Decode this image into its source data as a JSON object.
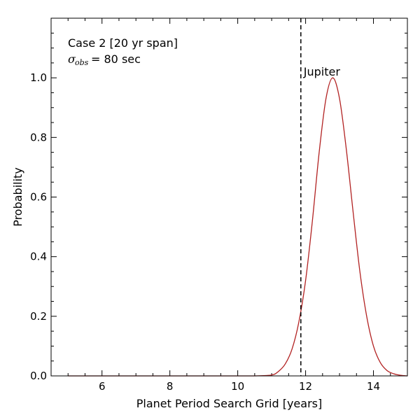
{
  "chart_data": {
    "type": "line",
    "xlabel": "Planet Period Search Grid [years]",
    "ylabel": "Probability",
    "xlim": [
      4.5,
      15
    ],
    "ylim": [
      0,
      1.2
    ],
    "x_ticks": [
      6,
      8,
      10,
      12,
      14
    ],
    "y_ticks": [
      0.0,
      0.2,
      0.4,
      0.6,
      0.8,
      1.0
    ],
    "x_tick_labels": [
      "6",
      "8",
      "10",
      "12",
      "14"
    ],
    "y_tick_labels": [
      "0.0",
      "0.2",
      "0.4",
      "0.6",
      "0.8",
      "1.0"
    ],
    "grid": false,
    "annotation_case": "Case 2 [20 yr span]",
    "annotation_sigma_symbol": "σ",
    "annotation_sigma_sub": "obs",
    "annotation_sigma_value": "= 80 sec",
    "reference_line": {
      "x": 11.86,
      "label": "Jupiter"
    },
    "curve_color": "#b22222",
    "series": [
      {
        "x": [
          5.0,
          10.0,
          10.5,
          11.0,
          11.2,
          11.4,
          11.6,
          11.8,
          12.0,
          12.2,
          12.4,
          12.6,
          12.8,
          13.0,
          13.2,
          13.4,
          13.6,
          13.8,
          14.0,
          14.2,
          14.4,
          14.6,
          14.8,
          15.0
        ],
        "y": [
          0.0,
          0.0,
          0.0,
          0.003,
          0.015,
          0.04,
          0.09,
          0.18,
          0.32,
          0.52,
          0.75,
          0.93,
          1.0,
          0.93,
          0.76,
          0.55,
          0.35,
          0.2,
          0.1,
          0.045,
          0.018,
          0.007,
          0.002,
          0.0
        ]
      }
    ]
  }
}
